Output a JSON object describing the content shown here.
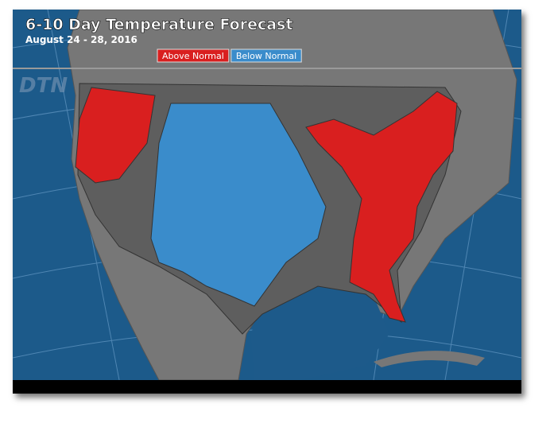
{
  "header": {
    "title": "6-10 Day Temperature Forecast",
    "subtitle": "August 24 - 28, 2016",
    "logo": "DTN"
  },
  "legend": [
    {
      "label": "Above Normal",
      "color": "#d91f1f"
    },
    {
      "label": "Below Normal",
      "color": "#3a8ccb"
    }
  ]
}
